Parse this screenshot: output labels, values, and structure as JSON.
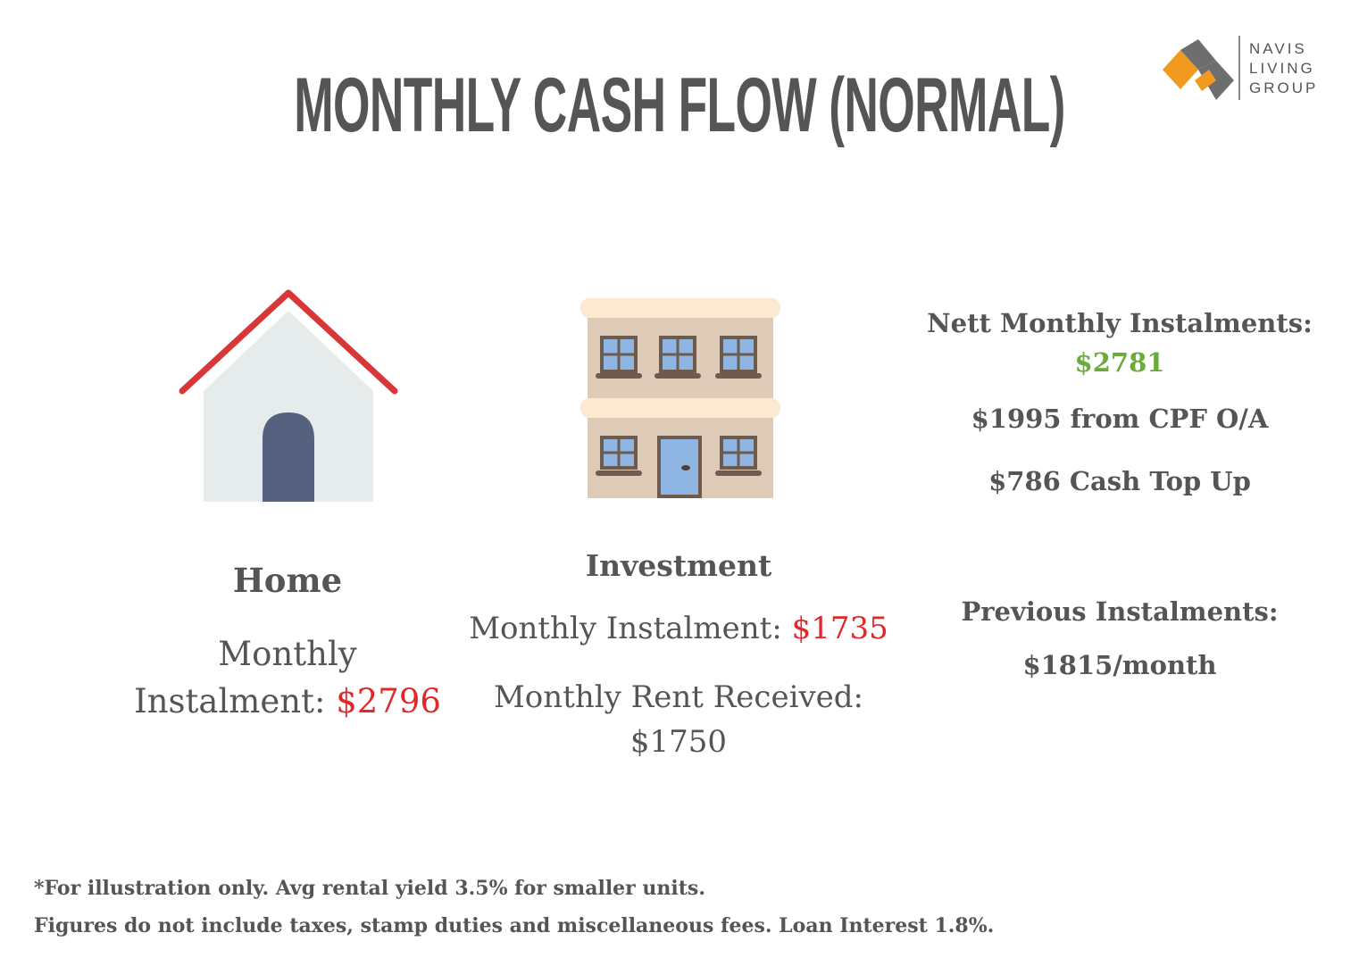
{
  "title": "MONTHLY CASH FLOW (NORMAL)",
  "logo": {
    "line1": "NAVIS",
    "line2": "LIVING",
    "line3": "GROUP"
  },
  "icons": {
    "home": "house-icon",
    "investment": "apartment-building-icon",
    "logo": "navis-n-logo-icon"
  },
  "home": {
    "heading": "Home",
    "instalment_label": "Monthly Instalment:",
    "instalment_value": "$2796"
  },
  "investment": {
    "heading": "Investment",
    "instalment_label": "Monthly Instalment:",
    "instalment_value": "$1735",
    "rent_label": "Monthly Rent Received:",
    "rent_value": "$1750"
  },
  "summary": {
    "nett_label": "Nett Monthly Instalments:",
    "nett_value": "$2781",
    "cpf": "$1995 from CPF O/A",
    "cash": "$786 Cash Top Up",
    "previous_label": "Previous Instalments:",
    "previous_value": "$1815/month"
  },
  "footnotes": {
    "line1": "*For illustration only. Avg rental yield 3.5% for smaller units.",
    "line2": "Figures do not include taxes, stamp duties and miscellaneous fees. Loan Interest 1.8%."
  },
  "colors": {
    "red": "#e0282a",
    "green": "#6aab3c",
    "text": "#555555",
    "orange": "#f29a1f",
    "gray_logo": "#6d6e70"
  }
}
